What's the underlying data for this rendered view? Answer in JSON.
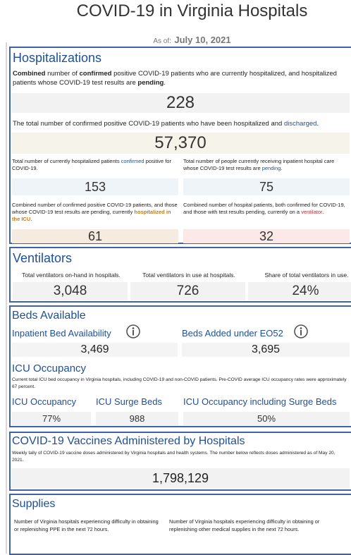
{
  "header": {
    "title": "COVID-19 in Virginia Hospitals",
    "as_of_label": "As of:",
    "as_of_date": "July 10, 2021"
  },
  "hospitalizations": {
    "title": "Hospitalizations",
    "description": [
      "Combined",
      " number of ",
      "confirmed",
      " positive COVID-19 patients who are currently hospitalized, and hospitalized patients whose COVID-19 test results are ",
      "pending",
      "."
    ],
    "current_total": "228",
    "discharged_description": [
      "The total number of confirmed positive COVID-19 patients who have been hospitalized and ",
      "discharged",
      "."
    ],
    "cumulative": "57,370",
    "cards": [
      {
        "description": [
          "Total number of currently hospitalized patients ",
          "confirmed",
          " positive for COVID-19."
        ],
        "value": "153"
      },
      {
        "description": [
          "Total number of people currently receiving inpatient hospital care whose COVID-19 test results are ",
          "pending",
          "."
        ],
        "value": "75"
      },
      {
        "description": [
          "Combined number of confirmed positive COVID-19 patients, and those whose COVID-19 test results are pending, currently ",
          "hospitalized in the ICU",
          "."
        ],
        "value": "61"
      },
      {
        "description": [
          "Combined number of hospital patients, both confirmed for COVID-19, and those with test results pending, currently on a ",
          "ventilator",
          "."
        ],
        "value": "32"
      }
    ]
  },
  "ventilators": {
    "title": "Ventilators",
    "items": [
      {
        "label": "Total ventilators on-hand in hospitals.",
        "value": "3,048"
      },
      {
        "label": "Total ventilators in use at hospitals.",
        "value": "726"
      },
      {
        "label": "Share of total ventilators in use.",
        "value": "24%"
      }
    ]
  },
  "beds": {
    "title": "Beds Available",
    "items": [
      {
        "label": "Inpatient Bed Availability",
        "value": "3,469"
      },
      {
        "label": "Beds Added under EO52",
        "value": "3,695"
      }
    ],
    "icu_title": "ICU Occupancy",
    "icu_description": "Current total ICU bed occupancy in Virginia hospitals, including COVID-19 and non-COVID patients. Pre-COVID average ICU occupancy rates were approximately 67 percent.",
    "icu_items": [
      {
        "label": "ICU Occupancy",
        "value": "77%"
      },
      {
        "label": "ICU Surge Beds",
        "value": "988"
      },
      {
        "label": "ICU Occupancy including Surge Beds",
        "value": "50%"
      }
    ]
  },
  "vaccines": {
    "title": "COVID-19 Vaccines Administered by Hospitals",
    "description": "Weekly tally of COVID-19 vaccine doses administered by Virginia hospitals and health systems. The number below reflects doses administered as of May 20, 2021.",
    "value": "1,798,129"
  },
  "supplies": {
    "title": "Supplies",
    "items": [
      "Number of Virginia hospitals experiencing difficulty in obtaining or replenishing PPE in the next 72 hours.",
      "Number of Virginia hospitals experiencing difficulty in obtaining or replenishing other medical supplies in the next 72 hours."
    ]
  }
}
